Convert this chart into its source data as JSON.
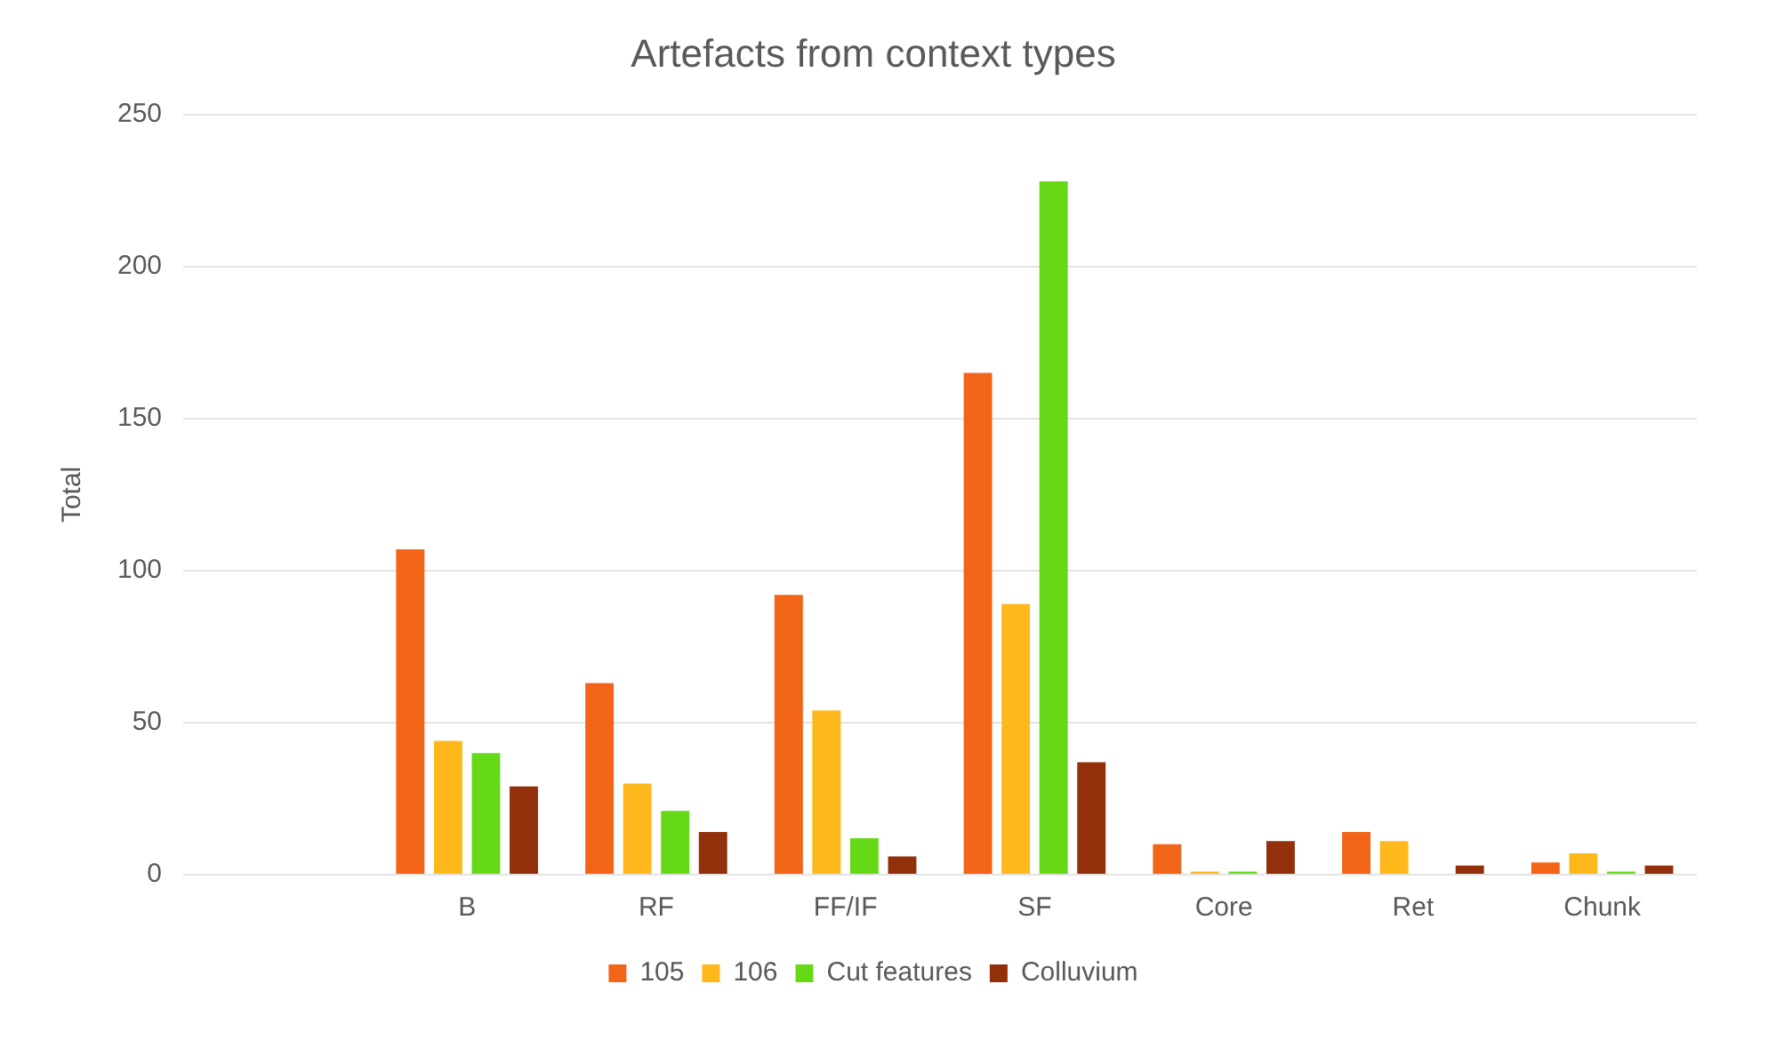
{
  "chart_data": {
    "type": "bar",
    "title": "Artefacts from context types",
    "ylabel": "Total",
    "categories": [
      null,
      "B",
      "RF",
      "FF/IF",
      "SF",
      "Core",
      "Ret",
      "Chunk"
    ],
    "series": [
      {
        "name": "105",
        "color": "#f26418",
        "values": [
          null,
          107,
          63,
          92,
          165,
          10,
          14,
          4
        ]
      },
      {
        "name": "106",
        "color": "#ffb81c",
        "values": [
          null,
          44,
          30,
          54,
          89,
          1,
          11,
          7
        ]
      },
      {
        "name": "Cut features",
        "color": "#66d916",
        "values": [
          null,
          40,
          21,
          12,
          228,
          1,
          0,
          1
        ]
      },
      {
        "name": "Colluvium",
        "color": "#93300c",
        "values": [
          null,
          29,
          14,
          6,
          37,
          11,
          3,
          3
        ]
      }
    ],
    "ylim": [
      0,
      250
    ],
    "yticks": [
      0,
      50,
      100,
      150,
      200,
      250
    ],
    "grid": "y",
    "legend": "bottom"
  }
}
